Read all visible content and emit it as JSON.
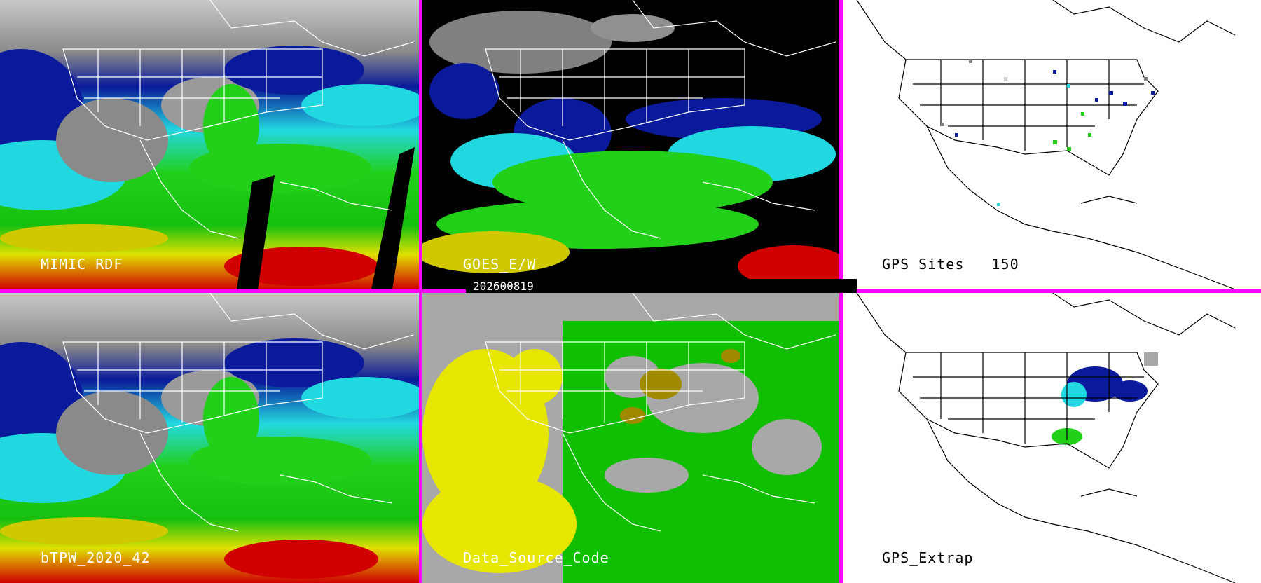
{
  "panels": {
    "mimic": {
      "label": "MIMIC RDF"
    },
    "goes": {
      "label": "GOES_E/W"
    },
    "gps_sites": {
      "label": "GPS Sites",
      "count": "150"
    },
    "btpw": {
      "label": "bTPW_2020_42"
    },
    "source_code": {
      "label": "Data_Source_Code"
    },
    "gps_extrap": {
      "label": "GPS_Extrap"
    }
  },
  "date": "202600819",
  "colors": {
    "border": "#ff00ff",
    "tpw_low": "#808080",
    "tpw_blue": "#0a1a9a",
    "tpw_cyan": "#22d8e0",
    "tpw_green": "#22d01a",
    "tpw_yellow": "#e0e000",
    "tpw_red": "#d00000",
    "source_yellow": "#e6e600",
    "source_green": "#10c000",
    "source_gray": "#a8a8a8",
    "source_olive": "#a08a00"
  }
}
